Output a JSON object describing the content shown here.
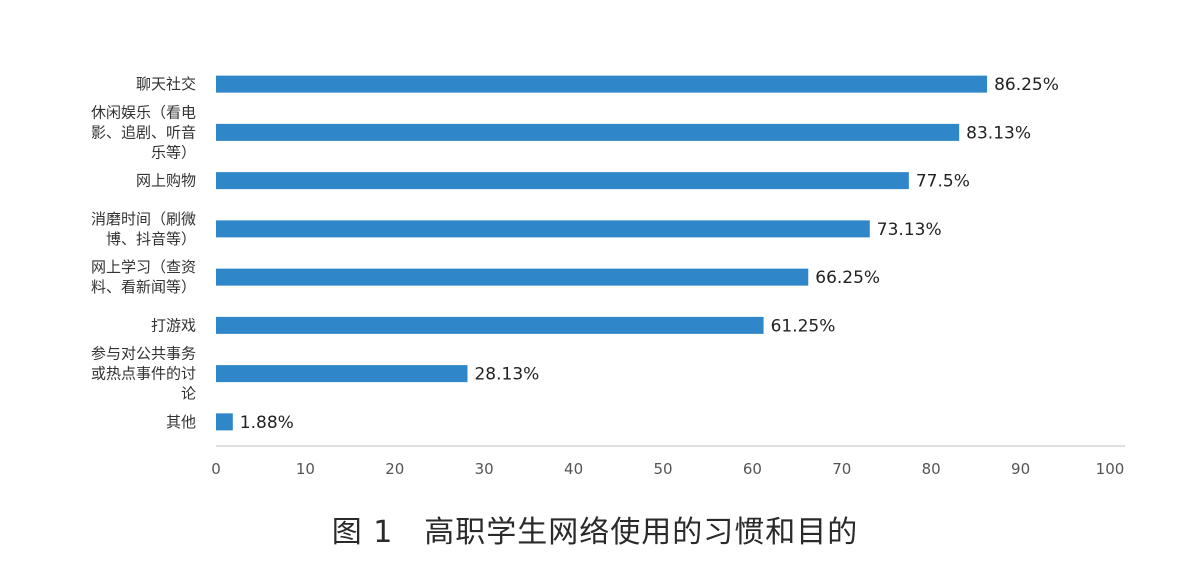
{
  "caption": "图 1　高职学生网络使用的习惯和目的",
  "colors": {
    "bar": "#2f86c8",
    "axis": "#bfbfbf"
  },
  "chart_data": {
    "type": "bar",
    "orientation": "horizontal",
    "categories": [
      [
        "聊天社交"
      ],
      [
        "休闲娱乐（看电",
        "影、追剧、听音",
        "乐等）"
      ],
      [
        "网上购物"
      ],
      [
        "消磨时间（刷微",
        "博、抖音等）"
      ],
      [
        "网上学习（查资",
        "料、看新闻等）"
      ],
      [
        "打游戏"
      ],
      [
        "参与对公共事务",
        "或热点事件的讨",
        "论"
      ],
      [
        "其他"
      ]
    ],
    "values": [
      86.25,
      83.13,
      77.5,
      73.13,
      66.25,
      61.25,
      28.13,
      1.88
    ],
    "value_labels": [
      "86.25%",
      "83.13%",
      "77.5%",
      "73.13%",
      "66.25%",
      "61.25%",
      "28.13%",
      "1.88%"
    ],
    "xlim": [
      0,
      100
    ],
    "xticks": [
      0,
      10,
      20,
      30,
      40,
      50,
      60,
      70,
      80,
      90,
      100
    ],
    "grid": false
  }
}
